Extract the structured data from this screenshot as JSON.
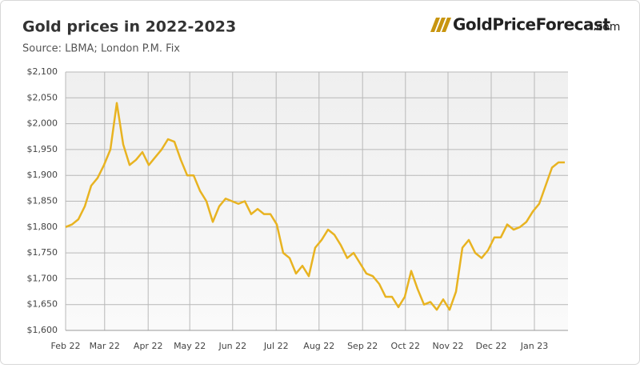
{
  "logo": {
    "name": "GoldPriceForecast",
    "suffix": ".com"
  },
  "chart_data": {
    "type": "line",
    "title": "Gold prices in 2022-2023",
    "subtitle": "Source: LBMA; London P.M. Fix",
    "color": "#e8b321",
    "grid": true,
    "values": [
      1800,
      1805,
      1815,
      1840,
      1880,
      1895,
      1920,
      1950,
      2040,
      1960,
      1920,
      1930,
      1945,
      1920,
      1935,
      1950,
      1970,
      1965,
      1930,
      1900,
      1900,
      1870,
      1850,
      1810,
      1840,
      1855,
      1850,
      1845,
      1850,
      1825,
      1835,
      1825,
      1825,
      1805,
      1750,
      1740,
      1710,
      1725,
      1705,
      1760,
      1775,
      1795,
      1785,
      1765,
      1740,
      1750,
      1730,
      1710,
      1705,
      1690,
      1665,
      1665,
      1645,
      1665,
      1715,
      1680,
      1650,
      1655,
      1640,
      1660,
      1640,
      1675,
      1760,
      1775,
      1750,
      1740,
      1755,
      1780,
      1780,
      1805,
      1795,
      1800,
      1810,
      1830,
      1845,
      1880,
      1915,
      1925,
      1925
    ],
    "xlim": [
      0,
      78.5
    ],
    "xticks": [
      {
        "value": 0,
        "label": "Feb 22"
      },
      {
        "value": 6.1,
        "label": "Mar 22"
      },
      {
        "value": 12.9,
        "label": "Apr 22"
      },
      {
        "value": 19.4,
        "label": "May 22"
      },
      {
        "value": 26.1,
        "label": "Jun 22"
      },
      {
        "value": 32.9,
        "label": "Jul 22"
      },
      {
        "value": 39.6,
        "label": "Aug 22"
      },
      {
        "value": 46.4,
        "label": "Sep 22"
      },
      {
        "value": 53.1,
        "label": "Oct 22"
      },
      {
        "value": 59.75,
        "label": "Nov 22"
      },
      {
        "value": 66.5,
        "label": "Dec 22"
      },
      {
        "value": 73.25,
        "label": "Jan 23"
      }
    ],
    "ylim": [
      1600,
      2100
    ],
    "yticks": [
      {
        "value": 1600,
        "label": "$1,600"
      },
      {
        "value": 1650,
        "label": "$1,650"
      },
      {
        "value": 1700,
        "label": "$1,700"
      },
      {
        "value": 1750,
        "label": "$1,750"
      },
      {
        "value": 1800,
        "label": "$1,800"
      },
      {
        "value": 1850,
        "label": "$1,850"
      },
      {
        "value": 1900,
        "label": "$1,900"
      },
      {
        "value": 1950,
        "label": "$1,950"
      },
      {
        "value": 2000,
        "label": "$2,000"
      },
      {
        "value": 2050,
        "label": "$2,050"
      },
      {
        "value": 2100,
        "label": "$2,100"
      }
    ]
  }
}
